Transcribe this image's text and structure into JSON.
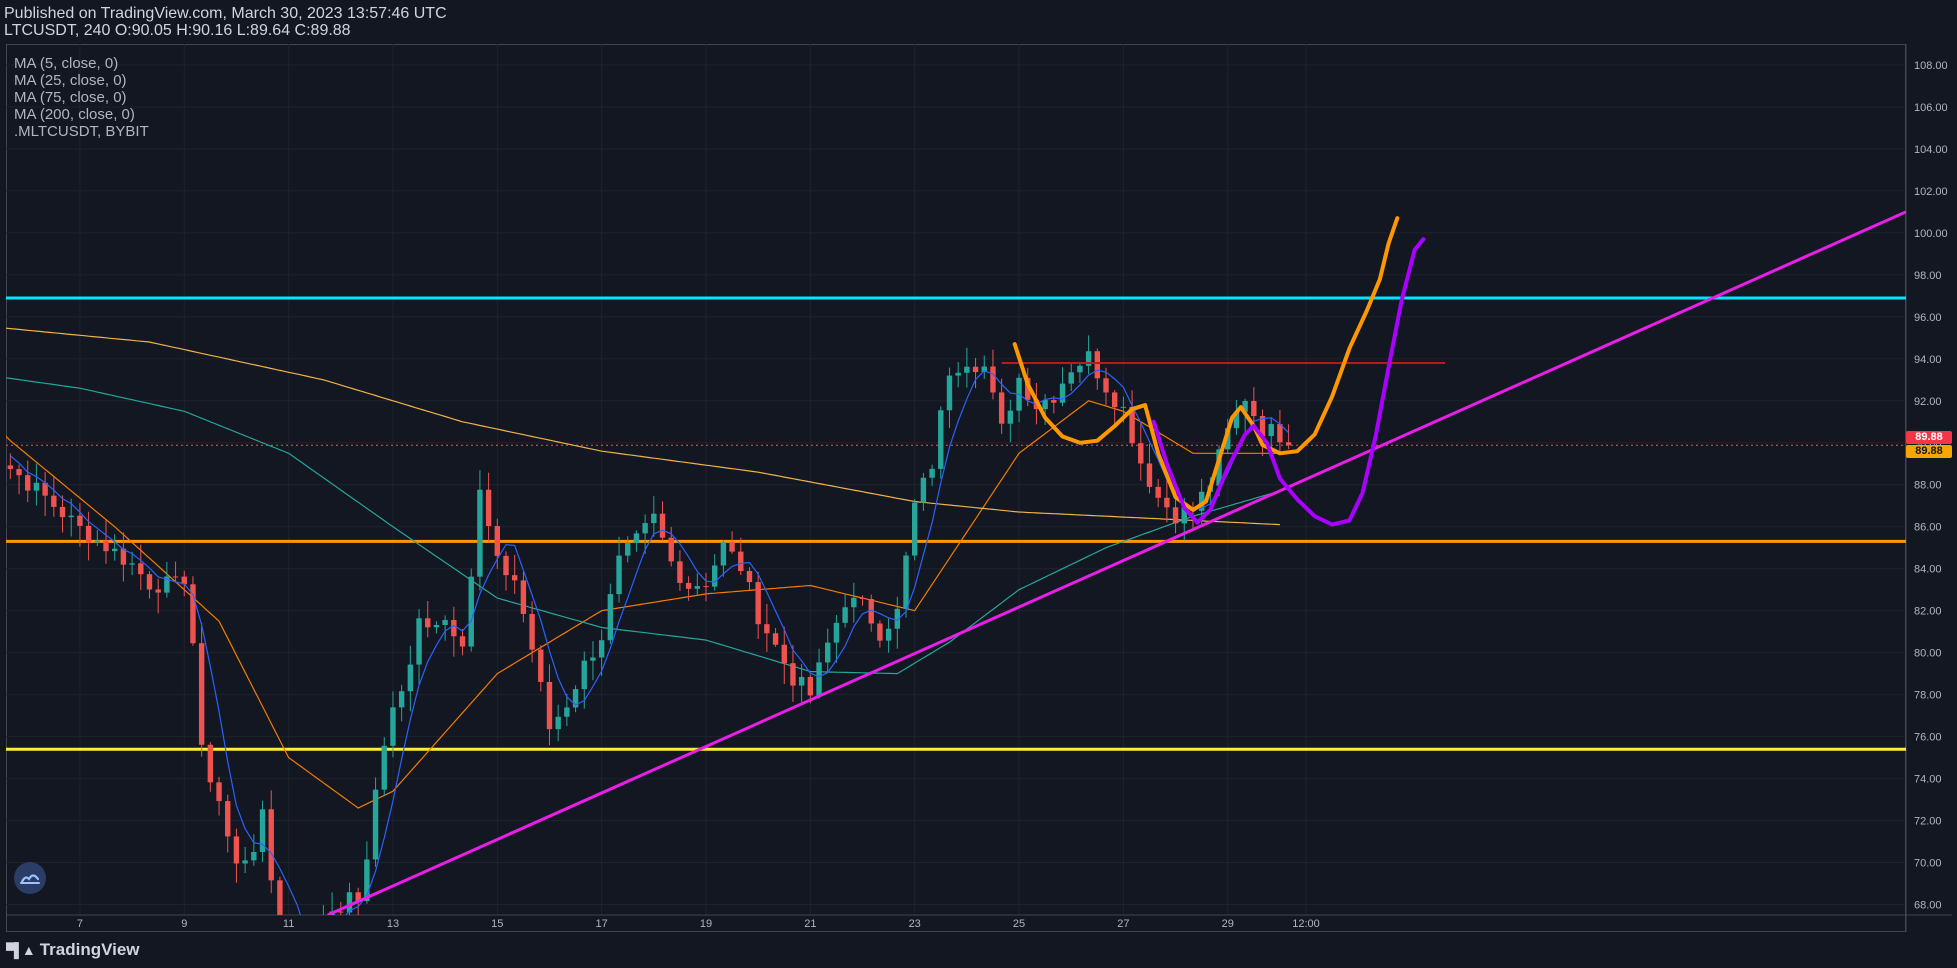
{
  "header": {
    "published": "Published on TradingView.com, March 30, 2023 13:57:46 UTC",
    "ohlc": "LTCUSDT, 240 O:90.05 H:90.16 L:89.64 C:89.88"
  },
  "legend": [
    "MA (5, close, 0)",
    "MA (25, close, 0)",
    "MA (75, close, 0)",
    "MA (200, close, 0)",
    ".MLTCUSDT, BYBIT"
  ],
  "branding": {
    "logo_text": "TradingView",
    "logo_icon": "tradingview-logo-icon"
  },
  "price_tags": [
    {
      "value": "89.88",
      "color": "#f23645"
    },
    {
      "value": "89.88",
      "color": "#f7a600"
    }
  ],
  "chart_data": {
    "type": "candlestick",
    "symbol": "LTCUSDT",
    "interval": "240",
    "ylim": [
      67.5,
      109.0
    ],
    "y_ticks": [
      "68.00",
      "70.00",
      "72.00",
      "74.00",
      "76.00",
      "78.00",
      "80.00",
      "82.00",
      "84.00",
      "86.00",
      "88.00",
      "90.00",
      "92.00",
      "94.00",
      "96.00",
      "98.00",
      "100.00",
      "102.00",
      "104.00",
      "106.00",
      "108.00"
    ],
    "x_ticks": [
      {
        "label": "7",
        "i": 12
      },
      {
        "label": "9",
        "i": 24
      },
      {
        "label": "11",
        "i": 36
      },
      {
        "label": "13",
        "i": 48
      },
      {
        "label": "15",
        "i": 60
      },
      {
        "label": "17",
        "i": 72
      },
      {
        "label": "19",
        "i": 84
      },
      {
        "label": "21",
        "i": 96
      },
      {
        "label": "23",
        "i": 108
      },
      {
        "label": "25",
        "i": 120
      },
      {
        "label": "27",
        "i": 132
      },
      {
        "label": "29",
        "i": 144
      },
      {
        "label": "12:00",
        "i": 153
      }
    ],
    "x_range": [
      3.5,
      222
    ],
    "last_price": 89.88,
    "up_color": "#26a69a",
    "down_color": "#ef5350",
    "close_anchors": [
      [
        0,
        90.2
      ],
      [
        4,
        88.8
      ],
      [
        8,
        87.4
      ],
      [
        12,
        85.9
      ],
      [
        16,
        84.8
      ],
      [
        18,
        84.2
      ],
      [
        20,
        83.3
      ],
      [
        23,
        83.2
      ],
      [
        24,
        83.6
      ],
      [
        25,
        80.5
      ],
      [
        26,
        75.2
      ],
      [
        28,
        73.0
      ],
      [
        29,
        71.2
      ],
      [
        30,
        69.8
      ],
      [
        32,
        70.8
      ],
      [
        33,
        72.1
      ],
      [
        34,
        69.2
      ],
      [
        35,
        66.5
      ],
      [
        36,
        65.9
      ],
      [
        38,
        66.3
      ],
      [
        40,
        67.6
      ],
      [
        44,
        68.4
      ],
      [
        45,
        69.8
      ],
      [
        46,
        73.5
      ],
      [
        47,
        75.8
      ],
      [
        48,
        77.3
      ],
      [
        50,
        79.2
      ],
      [
        51,
        81.5
      ],
      [
        54,
        81.6
      ],
      [
        56,
        80.7
      ],
      [
        57,
        83.7
      ],
      [
        58,
        87.6
      ],
      [
        60,
        84.2
      ],
      [
        62,
        83.5
      ],
      [
        64,
        80.2
      ],
      [
        66,
        76.4
      ],
      [
        68,
        77.6
      ],
      [
        70,
        79.4
      ],
      [
        72,
        80.8
      ],
      [
        74,
        84.3
      ],
      [
        76,
        85.3
      ],
      [
        78,
        86.4
      ],
      [
        80,
        84.3
      ],
      [
        82,
        83.2
      ],
      [
        84,
        83.4
      ],
      [
        86,
        85.1
      ],
      [
        88,
        84.1
      ],
      [
        90,
        81.8
      ],
      [
        92,
        80.3
      ],
      [
        94,
        78.8
      ],
      [
        96,
        78.0
      ],
      [
        98,
        80.4
      ],
      [
        100,
        82.5
      ],
      [
        102,
        82.2
      ],
      [
        104,
        81.0
      ],
      [
        106,
        81.9
      ],
      [
        108,
        87.0
      ],
      [
        110,
        89.0
      ],
      [
        112,
        93.5
      ],
      [
        114,
        94.0
      ],
      [
        116,
        93.6
      ],
      [
        118,
        90.6
      ],
      [
        120,
        93.1
      ],
      [
        122,
        91.8
      ],
      [
        124,
        92.3
      ],
      [
        126,
        93.6
      ],
      [
        128,
        94.1
      ],
      [
        130,
        92.7
      ],
      [
        132,
        91.6
      ],
      [
        134,
        89.1
      ],
      [
        136,
        87.4
      ],
      [
        138,
        86.6
      ],
      [
        140,
        86.8
      ],
      [
        142,
        88.1
      ],
      [
        144,
        90.5
      ],
      [
        146,
        92.2
      ],
      [
        147,
        91.4
      ],
      [
        148,
        90.7
      ],
      [
        150,
        90.4
      ],
      [
        151,
        89.9
      ]
    ],
    "moving_averages": [
      {
        "name": "MA (5, close, 0)",
        "period": 5,
        "color": "#2962ff"
      },
      {
        "name": "MA (25, close, 0)",
        "period": 25,
        "color": "#f57c00"
      },
      {
        "name": "MA (75, close, 0)",
        "period": 75,
        "color": "#26a69a"
      },
      {
        "name": "MA (200, close, 0)",
        "period": 200,
        "color": "#f0b24a"
      }
    ],
    "ma_seed_values": [
      {
        "period": 25,
        "points": [
          [
            0,
            91.8
          ],
          [
            4,
            90.1
          ],
          [
            16,
            86.0
          ],
          [
            28,
            81.5
          ],
          [
            36,
            75.0
          ],
          [
            44,
            72.6
          ],
          [
            48,
            73.4
          ],
          [
            60,
            79.0
          ],
          [
            72,
            82.0
          ],
          [
            84,
            82.8
          ],
          [
            96,
            83.2
          ],
          [
            108,
            82.0
          ],
          [
            112,
            84.5
          ],
          [
            120,
            89.5
          ],
          [
            128,
            92.0
          ],
          [
            132,
            91.5
          ],
          [
            140,
            89.5
          ],
          [
            150,
            89.5
          ]
        ]
      },
      {
        "period": 75,
        "points": [
          [
            0,
            93.3
          ],
          [
            12,
            92.6
          ],
          [
            24,
            91.5
          ],
          [
            36,
            89.5
          ],
          [
            48,
            86.0
          ],
          [
            60,
            82.6
          ],
          [
            72,
            81.2
          ],
          [
            84,
            80.6
          ],
          [
            96,
            79.1
          ],
          [
            106,
            79.0
          ],
          [
            112,
            80.5
          ],
          [
            120,
            83.0
          ],
          [
            130,
            85.0
          ],
          [
            140,
            86.5
          ],
          [
            150,
            87.7
          ]
        ]
      },
      {
        "period": 200,
        "points": [
          [
            0,
            95.6
          ],
          [
            20,
            94.8
          ],
          [
            40,
            93.0
          ],
          [
            56,
            91.0
          ],
          [
            72,
            89.6
          ],
          [
            90,
            88.6
          ],
          [
            108,
            87.2
          ],
          [
            120,
            86.7
          ],
          [
            130,
            86.5
          ],
          [
            140,
            86.3
          ],
          [
            150,
            86.1
          ]
        ]
      }
    ],
    "horizontal_lines": [
      {
        "price": 96.9,
        "color": "#00e5ff",
        "width": 3
      },
      {
        "price": 85.3,
        "color": "#ff9800",
        "width": 3
      },
      {
        "price": 75.4,
        "color": "#ffeb3b",
        "width": 3
      },
      {
        "price": 89.88,
        "color": "#ef5350",
        "width": 1,
        "dashed": true
      }
    ],
    "segments": [
      {
        "from": [
          118,
          93.8
        ],
        "to": [
          169,
          93.8
        ],
        "color": "#b71c1c",
        "width": 2
      }
    ],
    "trendline": {
      "from": [
        40.5,
        67.5
      ],
      "to": [
        222,
        101.0
      ],
      "color": "#e91ee9",
      "width": 3
    },
    "drawn_paths": [
      {
        "color": "#ff9800",
        "width": 4,
        "points": [
          [
            119.5,
            94.7
          ],
          [
            121,
            92.8
          ],
          [
            123,
            91.2
          ],
          [
            125,
            90.3
          ],
          [
            127,
            90.0
          ],
          [
            129,
            90.1
          ],
          [
            131,
            90.8
          ],
          [
            133,
            91.6
          ],
          [
            134.5,
            91.8
          ],
          [
            136,
            89.5
          ],
          [
            138,
            87.4
          ],
          [
            140,
            86.8
          ],
          [
            141.5,
            87.2
          ],
          [
            143,
            89.2
          ],
          [
            144.5,
            91.2
          ],
          [
            145.5,
            91.7
          ],
          [
            147,
            90.8
          ],
          [
            148,
            89.9
          ],
          [
            150,
            89.5
          ],
          [
            152,
            89.6
          ],
          [
            154,
            90.4
          ],
          [
            156,
            92.2
          ],
          [
            158,
            94.5
          ],
          [
            160,
            96.3
          ],
          [
            161.5,
            97.8
          ],
          [
            162.5,
            99.5
          ],
          [
            163.5,
            100.7
          ]
        ]
      },
      {
        "color": "#aa00ff",
        "width": 4,
        "points": [
          [
            135.5,
            91.0
          ],
          [
            137,
            89.0
          ],
          [
            139,
            86.9
          ],
          [
            140.5,
            86.2
          ],
          [
            142,
            86.8
          ],
          [
            144,
            88.8
          ],
          [
            146,
            90.4
          ],
          [
            147,
            90.8
          ],
          [
            148.5,
            90.0
          ],
          [
            150,
            88.3
          ],
          [
            152,
            87.3
          ],
          [
            154,
            86.5
          ],
          [
            156,
            86.1
          ],
          [
            158,
            86.3
          ],
          [
            159.5,
            87.6
          ],
          [
            161,
            90.3
          ],
          [
            162.5,
            93.6
          ],
          [
            164,
            96.8
          ],
          [
            165.5,
            99.2
          ],
          [
            166.5,
            99.7
          ]
        ]
      }
    ]
  }
}
